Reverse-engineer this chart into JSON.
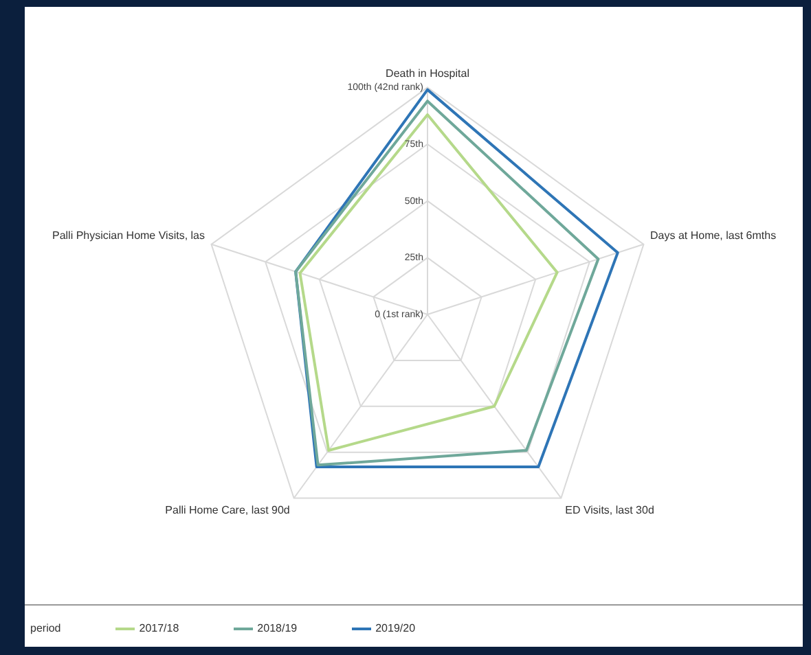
{
  "chart_data": {
    "type": "radar",
    "categories": [
      "Death in Hospital",
      "Days at Home, last 6mths",
      "ED Visits, last 30d",
      "Palli Home Care, last 90d",
      "Palli Physician Home Visits, las"
    ],
    "series": [
      {
        "name": "2017/18",
        "color": "#b5d98a",
        "values": [
          88,
          60,
          50,
          74,
          59
        ]
      },
      {
        "name": "2018/19",
        "color": "#6fa89a",
        "values": [
          94,
          79,
          74,
          82,
          61
        ]
      },
      {
        "name": "2019/20",
        "color": "#2e75b6",
        "values": [
          99,
          88,
          83,
          83,
          61
        ]
      }
    ],
    "ylim": [
      0,
      100
    ],
    "yticks": [
      {
        "value": 0,
        "label": "0 (1st rank)"
      },
      {
        "value": 25,
        "label": "25th"
      },
      {
        "value": 50,
        "label": "50th"
      },
      {
        "value": 75,
        "label": "75th"
      },
      {
        "value": 100,
        "label": "100th (42nd rank)"
      }
    ],
    "legend": "bottom",
    "legend_title": "period",
    "marker": "none",
    "grid": true
  }
}
